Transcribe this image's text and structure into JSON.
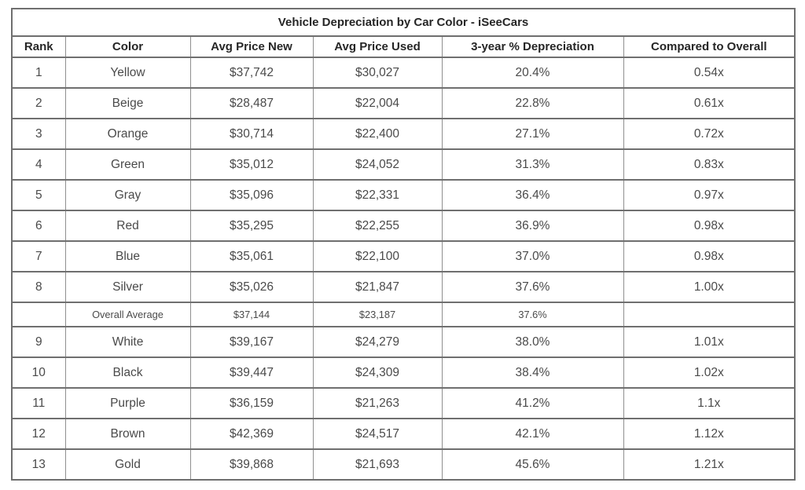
{
  "chart_data": {
    "type": "table",
    "title": "Vehicle Depreciation by Car Color - iSeeCars",
    "columns": [
      "Rank",
      "Color",
      "Avg Price New",
      "Avg Price Used",
      "3-year % Depreciation",
      "Compared to Overall"
    ],
    "rows": [
      {
        "rank": "1",
        "color": "Yellow",
        "avg_price_new": "$37,742",
        "avg_price_used": "$30,027",
        "depreciation": "20.4%",
        "compared": "0.54x"
      },
      {
        "rank": "2",
        "color": "Beige",
        "avg_price_new": "$28,487",
        "avg_price_used": "$22,004",
        "depreciation": "22.8%",
        "compared": "0.61x"
      },
      {
        "rank": "3",
        "color": "Orange",
        "avg_price_new": "$30,714",
        "avg_price_used": "$22,400",
        "depreciation": "27.1%",
        "compared": "0.72x"
      },
      {
        "rank": "4",
        "color": "Green",
        "avg_price_new": "$35,012",
        "avg_price_used": "$24,052",
        "depreciation": "31.3%",
        "compared": "0.83x"
      },
      {
        "rank": "5",
        "color": "Gray",
        "avg_price_new": "$35,096",
        "avg_price_used": "$22,331",
        "depreciation": "36.4%",
        "compared": "0.97x"
      },
      {
        "rank": "6",
        "color": "Red",
        "avg_price_new": "$35,295",
        "avg_price_used": "$22,255",
        "depreciation": "36.9%",
        "compared": "0.98x"
      },
      {
        "rank": "7",
        "color": "Blue",
        "avg_price_new": "$35,061",
        "avg_price_used": "$22,100",
        "depreciation": "37.0%",
        "compared": "0.98x"
      },
      {
        "rank": "8",
        "color": "Silver",
        "avg_price_new": "$35,026",
        "avg_price_used": "$21,847",
        "depreciation": "37.6%",
        "compared": "1.00x"
      },
      {
        "rank": "",
        "color": "Overall Average",
        "avg_price_new": "$37,144",
        "avg_price_used": "$23,187",
        "depreciation": "37.6%",
        "compared": ""
      },
      {
        "rank": "9",
        "color": "White",
        "avg_price_new": "$39,167",
        "avg_price_used": "$24,279",
        "depreciation": "38.0%",
        "compared": "1.01x"
      },
      {
        "rank": "10",
        "color": "Black",
        "avg_price_new": "$39,447",
        "avg_price_used": "$24,309",
        "depreciation": "38.4%",
        "compared": "1.02x"
      },
      {
        "rank": "11",
        "color": "Purple",
        "avg_price_new": "$36,159",
        "avg_price_used": "$21,263",
        "depreciation": "41.2%",
        "compared": "1.1x"
      },
      {
        "rank": "12",
        "color": "Brown",
        "avg_price_new": "$42,369",
        "avg_price_used": "$24,517",
        "depreciation": "42.1%",
        "compared": "1.12x"
      },
      {
        "rank": "13",
        "color": "Gold",
        "avg_price_new": "$39,868",
        "avg_price_used": "$21,693",
        "depreciation": "45.6%",
        "compared": "1.21x"
      }
    ],
    "layout": {
      "border_color": "#6f6f6f",
      "header_text_color": "#262626",
      "body_text_color": "#4a4a4a",
      "background": "#ffffff"
    }
  }
}
